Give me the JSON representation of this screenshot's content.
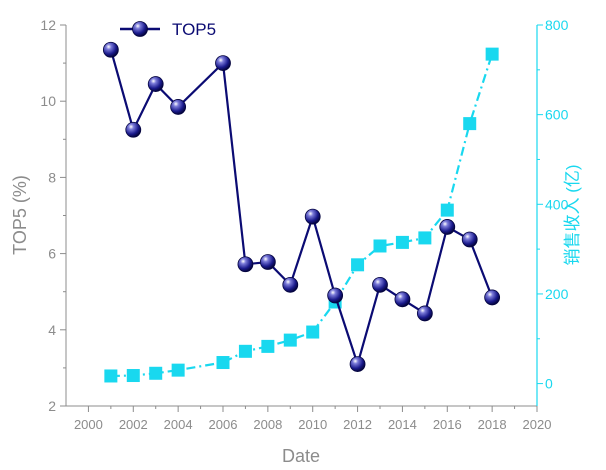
{
  "chart_data": {
    "type": "line",
    "xlabel": "Date",
    "ylabel_left": "TOP5 (%)",
    "ylabel_right": "销售收入 (亿)",
    "xlim": [
      1999,
      2020
    ],
    "ylim_left": [
      2,
      12
    ],
    "ylim_right": [
      -50,
      800
    ],
    "x_ticks": [
      2000,
      2002,
      2004,
      2006,
      2008,
      2010,
      2012,
      2014,
      2016,
      2018,
      2020
    ],
    "y_ticks_left": [
      2,
      4,
      6,
      8,
      10,
      12
    ],
    "y_ticks_right": [
      0,
      200,
      400,
      600,
      800
    ],
    "legend_position": "top-left",
    "series": [
      {
        "name": "TOP5",
        "axis": "left",
        "color": "#0b0b73",
        "marker": "sphere",
        "x": [
          2001,
          2002,
          2003,
          2004,
          2006,
          2007,
          2008,
          2009,
          2010,
          2011,
          2012,
          2013,
          2014,
          2015,
          2016,
          2017,
          2018
        ],
        "values": [
          11.35,
          9.25,
          10.45,
          9.85,
          11.0,
          5.72,
          5.78,
          5.18,
          6.97,
          4.9,
          3.1,
          5.18,
          4.8,
          4.43,
          6.7,
          6.37,
          4.85
        ]
      },
      {
        "name": "销售收入",
        "axis": "right",
        "color": "#19d8ef",
        "marker": "square",
        "x": [
          2001,
          2002,
          2003,
          2004,
          2006,
          2007,
          2008,
          2009,
          2010,
          2011,
          2012,
          2013,
          2014,
          2015,
          2016,
          2017,
          2018
        ],
        "values": [
          17,
          18,
          23,
          30,
          47,
          72,
          83,
          97,
          115,
          182,
          265,
          307,
          315,
          325,
          387,
          580,
          735
        ]
      }
    ],
    "legend": [
      {
        "label": "TOP5",
        "series": 0
      }
    ]
  }
}
